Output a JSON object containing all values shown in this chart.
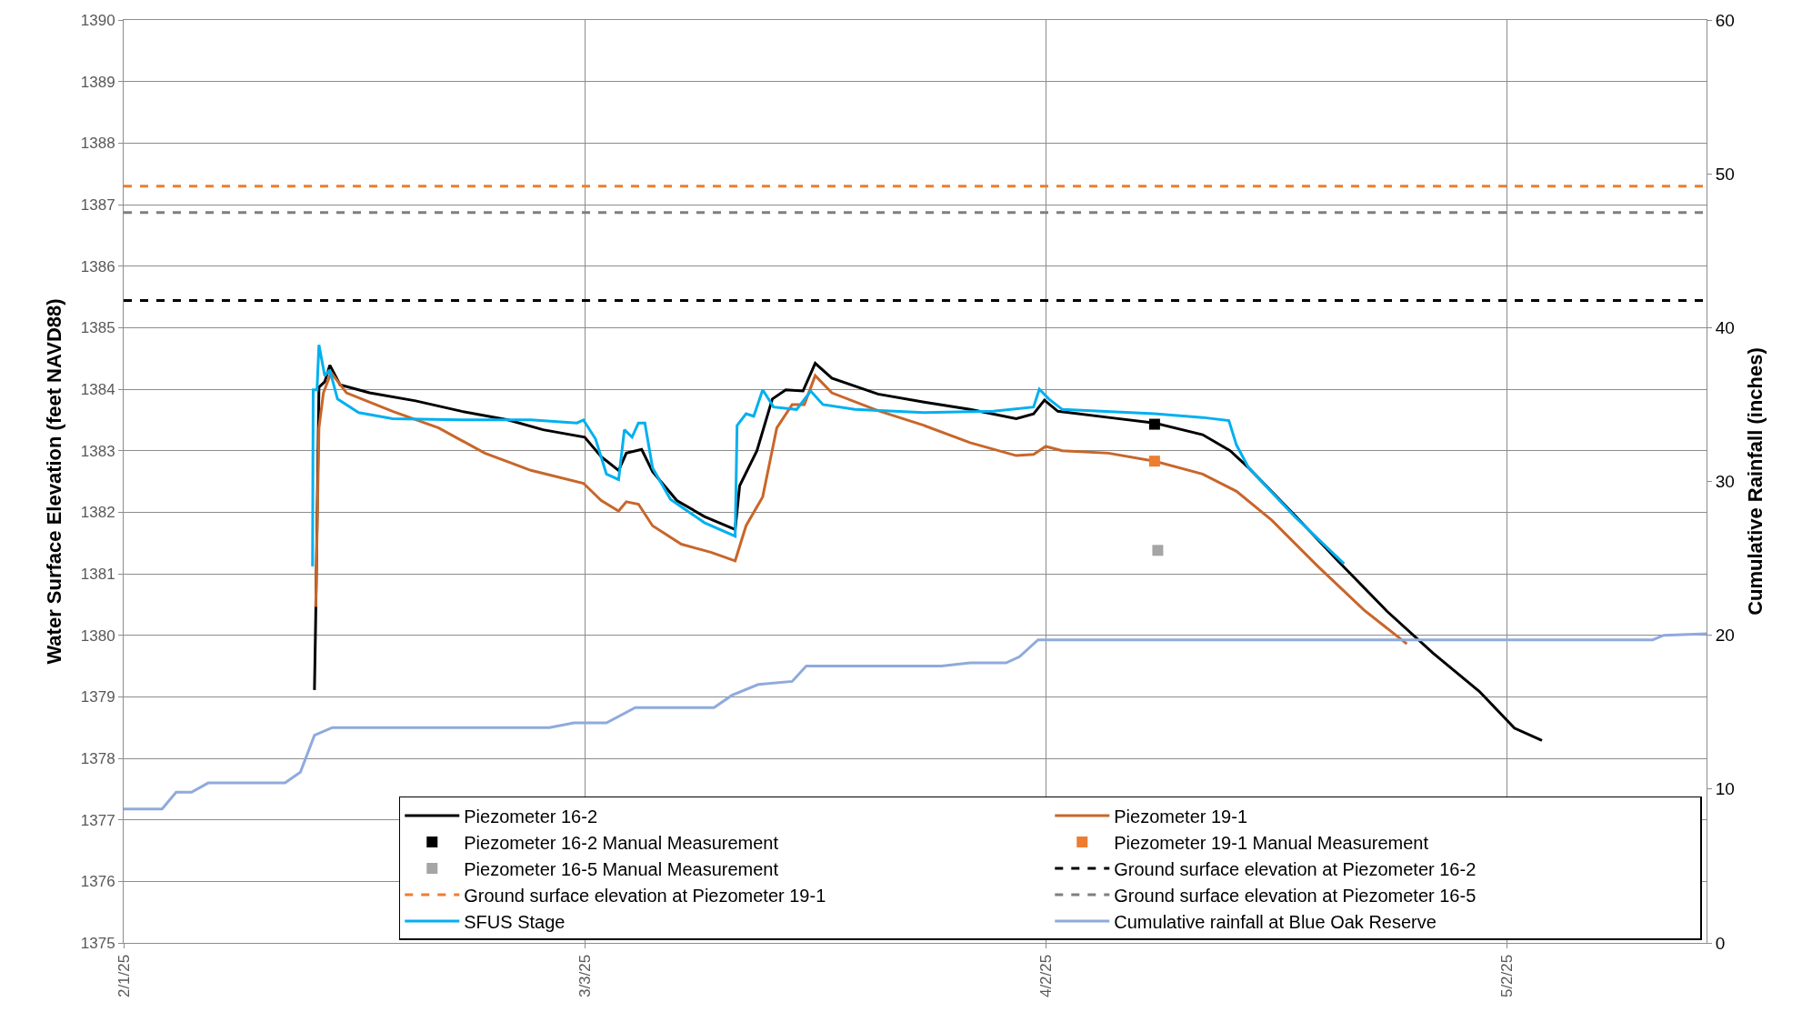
{
  "chart_data": {
    "type": "line",
    "ylabel": "Water Surface Elevation (feet NAVD88)",
    "y2label": "Cumulative Rainfall (inches)",
    "xlim": [
      "2025-02-01",
      "2025-05-15"
    ],
    "xticks": [
      {
        "value": "2025-02-01",
        "label": "2/1/25"
      },
      {
        "value": "2025-03-03",
        "label": "3/3/25"
      },
      {
        "value": "2025-04-02",
        "label": "4/2/25"
      },
      {
        "value": "2025-05-02",
        "label": "5/2/25"
      }
    ],
    "ylim": [
      1375,
      1390
    ],
    "yticks": [
      1375,
      1376,
      1377,
      1378,
      1379,
      1380,
      1381,
      1382,
      1383,
      1384,
      1385,
      1386,
      1387,
      1388,
      1389,
      1390
    ],
    "y2lim": [
      0,
      60
    ],
    "y2ticks": [
      0,
      10,
      20,
      30,
      40,
      50,
      60
    ],
    "grid": true,
    "legend": "bottom right",
    "series": [
      {
        "name": "Piezometer 16-2",
        "color": "#000000",
        "line_style": "solid",
        "x": [
          "2025-02-13T10:00",
          "2025-02-13T12:00",
          "2025-02-13T17:00",
          "2025-02-14T02:00",
          "2025-02-14T10:00",
          "2025-02-15T02:00",
          "2025-02-17",
          "2025-02-20",
          "2025-02-23",
          "2025-02-26",
          "2025-02-28T07:00",
          "2025-03-03",
          "2025-03-04T02:00",
          "2025-03-05T05:00",
          "2025-03-05T17:00",
          "2025-03-06T17:00",
          "2025-03-07T10:00",
          "2025-03-09",
          "2025-03-10T19:00",
          "2025-03-12T19:00",
          "2025-03-13T02:00",
          "2025-03-14T05:00",
          "2025-03-15T05:00",
          "2025-03-16T02:00",
          "2025-03-17T05:00",
          "2025-03-18",
          "2025-03-19T02:00",
          "2025-03-22T02:00",
          "2025-03-25T02:00",
          "2025-03-28T02:00",
          "2025-03-31T02:00",
          "2025-04-01T05:00",
          "2025-04-01T22:00",
          "2025-04-02T19:00",
          "2025-04-06T02:00",
          "2025-04-09T02:00",
          "2025-04-12T05:00",
          "2025-04-14",
          "2025-04-15T05:00",
          "2025-04-18T05:00",
          "2025-04-21T05:00",
          "2025-04-24T05:00",
          "2025-04-27T05:00",
          "2025-04-30T05:00",
          "2025-05-02T12:00",
          "2025-05-04T07:00"
        ],
        "values": [
          1379.11,
          1380.33,
          1384.03,
          1384.12,
          1384.39,
          1384.07,
          1383.94,
          1383.81,
          1383.64,
          1383.5,
          1383.34,
          1383.22,
          1382.9,
          1382.68,
          1382.96,
          1383.02,
          1382.66,
          1382.19,
          1381.93,
          1381.72,
          1382.43,
          1383.0,
          1383.84,
          1383.99,
          1383.97,
          1384.42,
          1384.18,
          1383.92,
          1383.79,
          1383.67,
          1383.52,
          1383.6,
          1383.82,
          1383.64,
          1383.54,
          1383.45,
          1383.26,
          1383.0,
          1382.72,
          1381.95,
          1381.16,
          1380.39,
          1379.71,
          1379.09,
          1378.49,
          1378.29
        ]
      },
      {
        "name": "Piezometer 19-1",
        "color": "#c8662a",
        "line_style": "solid",
        "x": [
          "2025-02-13T12:00",
          "2025-02-13T17:00",
          "2025-02-14",
          "2025-02-14T12:00",
          "2025-02-15T12:00",
          "2025-02-18T12:00",
          "2025-02-21T12:00",
          "2025-02-24T12:00",
          "2025-02-27T12:00",
          "2025-03-02T22:00",
          "2025-03-04T02:00",
          "2025-03-05T05:00",
          "2025-03-05T17:00",
          "2025-03-06T12:00",
          "2025-03-07T10:00",
          "2025-03-09T07:00",
          "2025-03-11T05:00",
          "2025-03-12T19:00",
          "2025-03-13T12:00",
          "2025-03-14T14:00",
          "2025-03-15T12:00",
          "2025-03-16T12:00",
          "2025-03-17T07:00",
          "2025-03-18",
          "2025-03-19T02:00",
          "2025-03-22T02:00",
          "2025-03-25T02:00",
          "2025-03-28T02:00",
          "2025-03-31T02:00",
          "2025-04-01T05:00",
          "2025-04-02",
          "2025-04-03T02:00",
          "2025-04-06T02:00",
          "2025-04-09T02:00",
          "2025-04-12T05:00",
          "2025-04-14T10:00",
          "2025-04-16T17:00",
          "2025-04-19T17:00",
          "2025-04-22T17:00",
          "2025-04-25T12:00"
        ],
        "values": [
          1380.46,
          1383.37,
          1383.94,
          1384.27,
          1383.94,
          1383.64,
          1383.37,
          1382.96,
          1382.68,
          1382.47,
          1382.19,
          1382.02,
          1382.17,
          1382.13,
          1381.78,
          1381.48,
          1381.35,
          1381.21,
          1381.78,
          1382.25,
          1383.37,
          1383.75,
          1383.75,
          1384.22,
          1383.94,
          1383.65,
          1383.41,
          1383.13,
          1382.92,
          1382.94,
          1383.07,
          1383.0,
          1382.96,
          1382.83,
          1382.62,
          1382.34,
          1381.87,
          1381.12,
          1380.41,
          1379.86
        ]
      },
      {
        "name": "Piezometer 16-2 Manual Measurement",
        "type": "scatter",
        "marker": "square",
        "color": "#000000",
        "x": [
          "2025-04-09T02:00"
        ],
        "values": [
          1383.43
        ]
      },
      {
        "name": "Piezometer 19-1 Manual Measurement",
        "type": "scatter",
        "marker": "square",
        "color": "#ed7d31",
        "x": [
          "2025-04-09T02:00"
        ],
        "values": [
          1382.83
        ]
      },
      {
        "name": "Piezometer 16-5 Manual Measurement",
        "type": "scatter",
        "marker": "square",
        "color": "#a5a5a5",
        "x": [
          "2025-04-09T07:00"
        ],
        "values": [
          1381.38
        ]
      },
      {
        "name": "Ground surface elevation at Piezometer 16-2",
        "color": "#000000",
        "line_style": "dashed",
        "x": [
          "2025-02-01",
          "2025-05-15"
        ],
        "values": [
          1385.44,
          1385.44
        ]
      },
      {
        "name": "Ground surface elevation at Piezometer 19-1",
        "color": "#ed7d31",
        "line_style": "dashed",
        "x": [
          "2025-02-01",
          "2025-05-15"
        ],
        "values": [
          1387.3,
          1387.3
        ]
      },
      {
        "name": "Ground surface elevation at Piezometer 16-5",
        "color": "#7f7f7f",
        "line_style": "dashed",
        "x": [
          "2025-02-01",
          "2025-05-15"
        ],
        "values": [
          1386.87,
          1386.87
        ]
      },
      {
        "name": "SFUS Stage",
        "color": "#00b0f0",
        "line_style": "solid",
        "x": [
          "2025-02-13T07:00",
          "2025-02-13T08:00",
          "2025-02-13T14:00",
          "2025-02-13T17:00",
          "2025-02-14T02:00",
          "2025-02-14T10:00",
          "2025-02-14T22:00",
          "2025-02-16T07:00",
          "2025-02-18T12:00",
          "2025-02-23",
          "2025-02-27T12:00",
          "2025-03-02T12:00",
          "2025-03-02T22:00",
          "2025-03-03T17:00",
          "2025-03-04T10:00",
          "2025-03-05T05:00",
          "2025-03-05T14:00",
          "2025-03-06T02:00",
          "2025-03-06T12:00",
          "2025-03-06T22:00",
          "2025-03-07T10:00",
          "2025-03-08T14:00",
          "2025-03-10T19:00",
          "2025-03-12T19:00",
          "2025-03-12T22:00",
          "2025-03-13T12:00",
          "2025-03-14",
          "2025-03-14T14:00",
          "2025-03-15T07:00",
          "2025-03-16T19:00",
          "2025-03-17T17:00",
          "2025-03-18T12:00",
          "2025-03-20T14:00",
          "2025-03-25T02:00",
          "2025-03-29T14:00",
          "2025-04-01T05:00",
          "2025-04-01T14:00",
          "2025-04-02T05:00",
          "2025-04-03T02:00",
          "2025-04-09T02:00",
          "2025-04-12T05:00",
          "2025-04-13T22:00",
          "2025-04-14T10:00",
          "2025-04-15T05:00",
          "2025-04-18T05:00",
          "2025-04-21T10:00"
        ],
        "values": [
          1381.12,
          1383.99,
          1383.99,
          1384.72,
          1384.22,
          1384.31,
          1383.84,
          1383.62,
          1383.52,
          1383.5,
          1383.5,
          1383.45,
          1383.5,
          1383.19,
          1382.62,
          1382.53,
          1383.34,
          1383.22,
          1383.45,
          1383.45,
          1382.72,
          1382.21,
          1381.83,
          1381.61,
          1383.41,
          1383.6,
          1383.56,
          1383.99,
          1383.71,
          1383.67,
          1383.97,
          1383.75,
          1383.67,
          1383.62,
          1383.64,
          1383.71,
          1384.0,
          1383.84,
          1383.67,
          1383.6,
          1383.54,
          1383.49,
          1383.09,
          1382.72,
          1381.93,
          1381.16
        ]
      },
      {
        "name": "Cumulative rainfall at Blue Oak Reserve",
        "axis": "y2",
        "color": "#8faadc",
        "line_style": "solid",
        "x": [
          "2025-02-01",
          "2025-02-03T12:00",
          "2025-02-04T10:00",
          "2025-02-05T10:00",
          "2025-02-06T12:00",
          "2025-02-11T12:00",
          "2025-02-12T12:00",
          "2025-02-13T10:00",
          "2025-02-14T14:00",
          "2025-02-20",
          "2025-02-28T17:00",
          "2025-03-02T07:00",
          "2025-03-04T10:00",
          "2025-03-06T07:00",
          "2025-03-11T10:00",
          "2025-03-12T14:00",
          "2025-03-14T07:00",
          "2025-03-16T12:00",
          "2025-03-17T10:00",
          "2025-03-26T05:00",
          "2025-03-28T02:00",
          "2025-03-30T10:00",
          "2025-03-31T07:00",
          "2025-04-01T12:00",
          "2025-05-01T17:00",
          "2025-05-11T12:00",
          "2025-05-12T05:00",
          "2025-05-15"
        ],
        "values": [
          8.7,
          8.7,
          9.8,
          9.8,
          10.4,
          10.4,
          11.1,
          13.5,
          14.0,
          14.0,
          14.0,
          14.3,
          14.3,
          15.3,
          15.3,
          16.1,
          16.8,
          17.0,
          18.0,
          18.0,
          18.2,
          18.2,
          18.6,
          19.7,
          19.7,
          19.7,
          20.0,
          20.1
        ]
      }
    ]
  }
}
